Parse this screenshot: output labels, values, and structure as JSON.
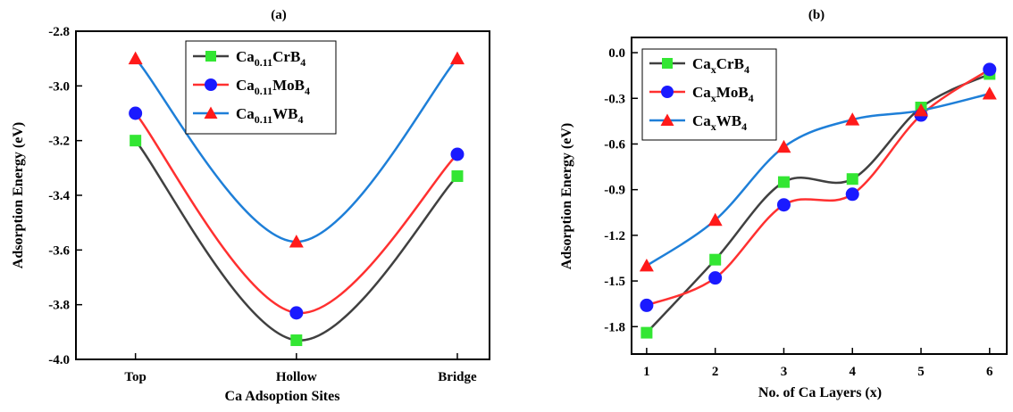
{
  "chart_data": [
    {
      "type": "line",
      "panel_label": "(a)",
      "xlabel": "Ca Adsoption Sites",
      "ylabel": "Adsorption Energy (eV)",
      "categories": [
        "Top",
        "Hollow",
        "Bridge"
      ],
      "ylim": [
        -4.0,
        -2.8
      ],
      "yticks": [
        -4.0,
        -3.8,
        -3.6,
        -3.4,
        -3.2,
        -3.0,
        -2.8
      ],
      "ytick_labels": [
        "-4.0",
        "-3.8",
        "-3.6",
        "-3.4",
        "-3.2",
        "-3.0",
        "-2.8"
      ],
      "grid": false,
      "legend_position": "top-center",
      "series": [
        {
          "name": "Ca0.11CrB4",
          "label_parts": [
            "Ca",
            "0.11",
            "CrB",
            "4"
          ],
          "color": "#404040",
          "marker_color": "#33e633",
          "marker": "square",
          "values": [
            -3.2,
            -3.93,
            -3.33
          ]
        },
        {
          "name": "Ca0.11MoB4",
          "label_parts": [
            "Ca",
            "0.11",
            "MoB",
            "4"
          ],
          "color": "#ff3030",
          "marker_color": "#1a1aff",
          "marker": "circle",
          "values": [
            -3.1,
            -3.83,
            -3.25
          ]
        },
        {
          "name": "Ca0.11WB4",
          "label_parts": [
            "Ca",
            "0.11",
            "WB",
            "4"
          ],
          "color": "#1e7fd8",
          "marker_color": "#ff1a1a",
          "marker": "triangle",
          "values": [
            -2.9,
            -3.57,
            -2.9
          ]
        }
      ]
    },
    {
      "type": "line",
      "panel_label": "(b)",
      "xlabel": "No. of Ca Layers (x)",
      "ylabel": "Adsorption Energy (eV)",
      "x": [
        1,
        2,
        3,
        4,
        5,
        6
      ],
      "xtick_labels": [
        "1",
        "2",
        "3",
        "4",
        "5",
        "6"
      ],
      "ylim": [
        -1.98,
        0.1
      ],
      "yticks": [
        -1.8,
        -1.5,
        -1.2,
        -0.9,
        -0.6,
        -0.3,
        0.0
      ],
      "ytick_labels": [
        "-1.8",
        "-1.5",
        "-1.2",
        "-0.9",
        "-0.6",
        "-0.3",
        "0.0"
      ],
      "grid": false,
      "legend_position": "top-left",
      "series": [
        {
          "name": "CaxCrB4",
          "label_parts": [
            "Ca",
            "x",
            "CrB",
            "4"
          ],
          "color": "#404040",
          "marker_color": "#33e633",
          "marker": "square",
          "values": [
            -1.84,
            -1.36,
            -0.85,
            -0.83,
            -0.36,
            -0.14
          ]
        },
        {
          "name": "CaxMoB4",
          "label_parts": [
            "Ca",
            "x",
            "MoB",
            "4"
          ],
          "color": "#ff3030",
          "marker_color": "#1a1aff",
          "marker": "circle",
          "values": [
            -1.66,
            -1.48,
            -1.0,
            -0.93,
            -0.41,
            -0.11
          ]
        },
        {
          "name": "CaxWB4",
          "label_parts": [
            "Ca",
            "x",
            "WB",
            "4"
          ],
          "color": "#1e7fd8",
          "marker_color": "#ff1a1a",
          "marker": "triangle",
          "values": [
            -1.4,
            -1.1,
            -0.62,
            -0.44,
            -0.38,
            -0.27
          ]
        }
      ]
    }
  ]
}
